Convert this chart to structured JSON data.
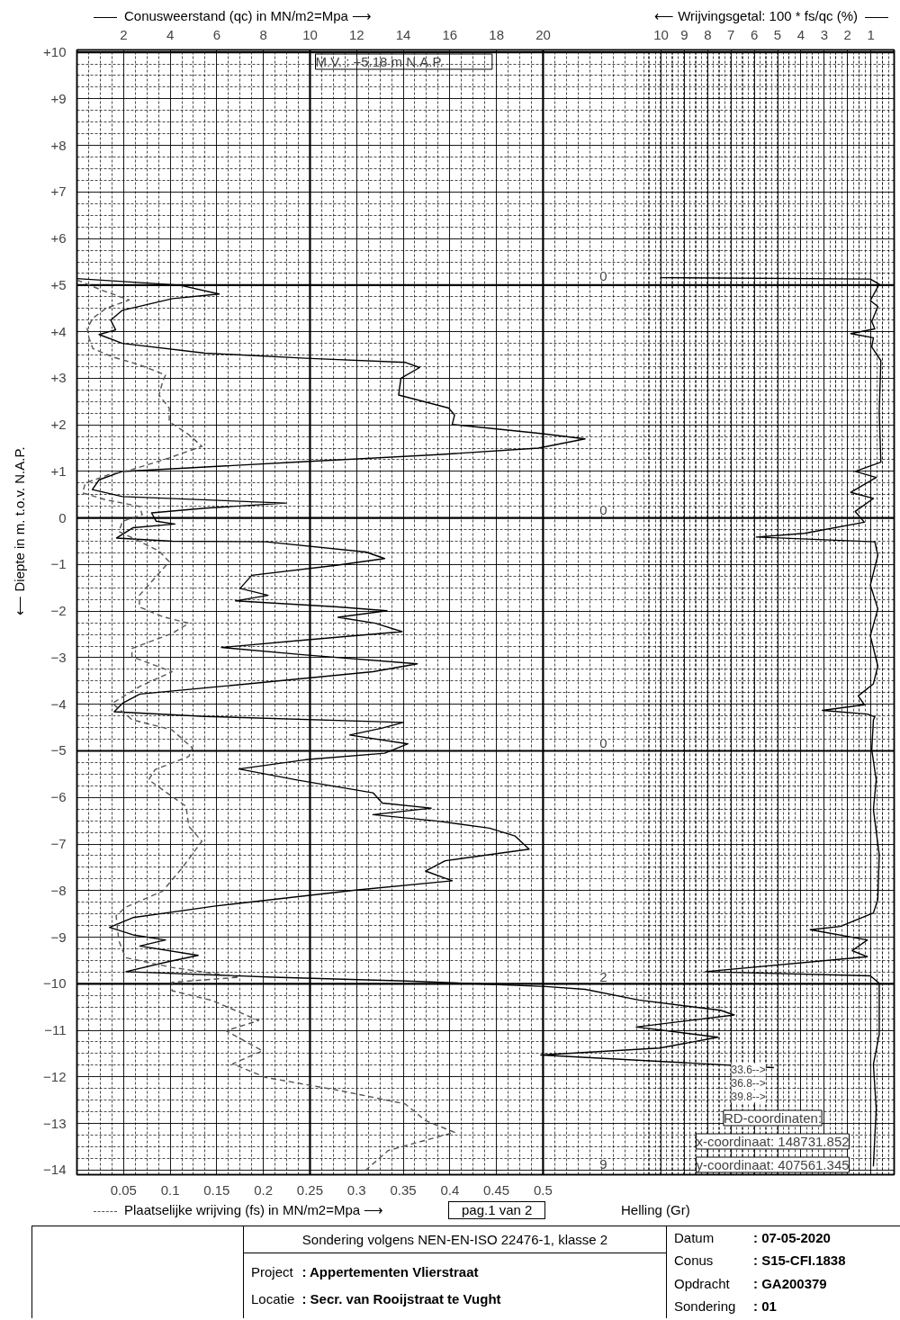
{
  "chart_data": [
    {
      "type": "line",
      "title": "Sondering volgens NEN-EN-ISO 22476-1, klasse 2",
      "xlabel": "Plaatselijke wrijving (fs) in MN/m2=Mpa ⟶",
      "x2label": "Conusweerstand (qc) in MN/m2=Mpa ⟶",
      "ylabel": "⟵ Diepte in m. t.o.v. N.A.P.",
      "xlim": [
        0,
        0.8766
      ],
      "xticks": [
        0.05,
        0.1,
        0.15,
        0.2,
        0.25,
        0.3,
        0.35,
        0.4,
        0.45,
        0.5
      ],
      "x2lim": [
        0,
        35.06
      ],
      "x2ticks": [
        2,
        4,
        6,
        8,
        10,
        12,
        14,
        16,
        18,
        20
      ],
      "ylim": [
        -14.1,
        10.05
      ],
      "yticks": [
        {
          "value": 10,
          "label": "+10"
        },
        {
          "value": 9,
          "label": "+9"
        },
        {
          "value": 8,
          "label": "+8"
        },
        {
          "value": 7,
          "label": "+7"
        },
        {
          "value": 6,
          "label": "+6"
        },
        {
          "value": 5,
          "label": "+5"
        },
        {
          "value": 4,
          "label": "+4"
        },
        {
          "value": 3,
          "label": "+3"
        },
        {
          "value": 2,
          "label": "+2"
        },
        {
          "value": 1,
          "label": "+1"
        },
        0,
        -1,
        -2,
        -3,
        -4,
        -5,
        -6,
        -7,
        -8,
        -9,
        -10,
        -11,
        -12,
        -13,
        -14
      ],
      "grid": true,
      "series": [
        {
          "axis": "x2",
          "color": "#000000",
          "line_style": "solid",
          "x": [
            0,
            4.4,
            6.1,
            4.1,
            1.95,
            1.45,
            1.66,
            0.95,
            1.95,
            5.5,
            9.8,
            14.1,
            14.7,
            13.9,
            13.8,
            15.95,
            16.2,
            16.1,
            19.8,
            21.8,
            19.8,
            15.5,
            9.8,
            1.95,
            0.95,
            0.66,
            1.95,
            8.95,
            5.5,
            3.2,
            3.4,
            4.2,
            2.4,
            1.7,
            4.1,
            8.1,
            12.4,
            13.2,
            11.2,
            7.5,
            7.0,
            8.2,
            6.8,
            11.2,
            13.3,
            11.2,
            12.8,
            13.95,
            9.8,
            6.2,
            9.8,
            14.6,
            12.7,
            6.95,
            2.7,
            1.95,
            1.6,
            5.5,
            14.0,
            13.1,
            11.7,
            14.2,
            13.2,
            9.8,
            6.95,
            9.5,
            12.7,
            13.1,
            15.2,
            12.7,
            15.5,
            17.7,
            18.8,
            19.4,
            15.8,
            14.95,
            16.1,
            11.95,
            5.95,
            2.4,
            1.4,
            2.4,
            3.8,
            2.7,
            5.2,
            3.8,
            2.1,
            8.4,
            14.1,
            20.1,
            21.8,
            24.1,
            27.6,
            28.2,
            24.0,
            27.5,
            25.0,
            19.9,
            29.9
          ],
          "values": [
            5.14,
            5.0,
            4.81,
            4.71,
            4.46,
            4.25,
            4.04,
            3.94,
            3.75,
            3.54,
            3.43,
            3.34,
            3.23,
            3.0,
            2.64,
            2.36,
            2.21,
            2.01,
            1.82,
            1.7,
            1.5,
            1.36,
            1.21,
            1.0,
            0.82,
            0.61,
            0.46,
            0.32,
            0.21,
            0.11,
            -0.07,
            -0.13,
            -0.21,
            -0.43,
            -0.5,
            -0.51,
            -0.73,
            -0.87,
            -1.01,
            -1.23,
            -1.51,
            -1.66,
            -1.78,
            -1.91,
            -1.99,
            -2.13,
            -2.26,
            -2.44,
            -2.62,
            -2.78,
            -2.94,
            -3.13,
            -3.3,
            -3.58,
            -3.78,
            -3.98,
            -4.16,
            -4.26,
            -4.39,
            -4.51,
            -4.66,
            -4.85,
            -5.05,
            -5.19,
            -5.39,
            -5.63,
            -5.9,
            -6.12,
            -6.23,
            -6.37,
            -6.51,
            -6.66,
            -6.83,
            -7.11,
            -7.36,
            -7.58,
            -7.79,
            -7.99,
            -8.33,
            -8.58,
            -8.79,
            -8.95,
            -9.06,
            -9.19,
            -9.39,
            -9.54,
            -9.74,
            -9.86,
            -9.94,
            -10.06,
            -10.12,
            -10.35,
            -10.57,
            -10.67,
            -10.93,
            -11.15,
            -11.38,
            -11.53,
            -11.8
          ]
        },
        {
          "color": "#555555",
          "line_style": "dashed",
          "x": [
            0,
            0.027,
            0.056,
            0.031,
            0.017,
            0.011,
            0.013,
            0.017,
            0.038,
            0.067,
            0.095,
            0.092,
            0.088,
            0.099,
            0.099,
            0.12,
            0.134,
            0.099,
            0.059,
            0.034,
            0.009,
            0.006,
            0.031,
            0.067,
            0.07,
            0.049,
            0.045,
            0.067,
            0.088,
            0.099,
            0.088,
            0.067,
            0.067,
            0.092,
            0.12,
            0.102,
            0.059,
            0.059,
            0.102,
            0.067,
            0.038,
            0.059,
            0.102,
            0.124,
            0.12,
            0.084,
            0.077,
            0.102,
            0.117,
            0.12,
            0.134,
            0.113,
            0.092,
            0.052,
            0.042,
            0.045,
            0.052,
            0.102,
            0.174,
            0.102,
            0.102,
            0.145,
            0.195,
            0.16,
            0.199,
            0.167,
            0.202,
            0.281,
            0.352,
            0.374,
            0.405,
            0.334,
            0.31
          ],
          "values": [
            5.11,
            4.89,
            4.68,
            4.5,
            4.29,
            4.07,
            3.86,
            3.64,
            3.46,
            3.29,
            3.07,
            2.93,
            2.64,
            2.36,
            2.07,
            1.79,
            1.54,
            1.29,
            1.04,
            0.93,
            0.75,
            0.54,
            0.39,
            0.25,
            0.07,
            -0.07,
            -0.29,
            -0.5,
            -0.71,
            -0.94,
            -1.19,
            -1.66,
            -1.91,
            -2.12,
            -2.26,
            -2.48,
            -2.8,
            -2.98,
            -3.3,
            -3.62,
            -3.98,
            -4.33,
            -4.55,
            -4.94,
            -5.12,
            -5.4,
            -5.62,
            -5.98,
            -6.19,
            -6.62,
            -6.94,
            -7.51,
            -8.01,
            -8.36,
            -8.54,
            -9.08,
            -9.44,
            -9.65,
            -9.86,
            -9.97,
            -10.15,
            -10.36,
            -10.79,
            -11.01,
            -11.44,
            -11.72,
            -12.01,
            -12.29,
            -12.58,
            -12.94,
            -13.19,
            -13.58,
            -14.0
          ]
        }
      ],
      "annotations": [
        "M.V. :            +5.18 m   N.A.P.",
        "33.6-->",
        "36.8-->",
        "39.8-->",
        "RD-coordinaten:",
        "x-coordinaat: 148731.852",
        "y-coordinaat: 407561.345",
        "pag.1 van 2",
        "Helling (Gr)",
        "0",
        "0",
        "0",
        "2",
        "9",
        "Project",
        ": Appertementen Vlierstraat",
        "Locatie",
        ": Secr. van Rooijstraat te Vught",
        "Datum",
        ": 07-05-2020",
        "Conus",
        ": S15-CFI.1838",
        "Opdracht",
        ": GA200379",
        "Sondering",
        ": 01"
      ]
    },
    {
      "type": "line",
      "xlabel": "⟵ Wrijvingsgetal: 100 * fs/qc (%)",
      "xlim": [
        35.06,
        0
      ],
      "xticks": [
        10,
        9,
        8,
        7,
        6,
        5,
        4,
        3,
        2,
        1
      ],
      "ylim": [
        -14.1,
        10.05
      ],
      "grid": "x",
      "tick_labels": "x",
      "series": [
        {
          "color": "#000000",
          "line_style": "solid",
          "x": [
            10.0,
            1.02,
            0.64,
            1.02,
            0.7,
            0.96,
            0.83,
            1.86,
            0.89,
            0.96,
            0.57,
            0.64,
            0.57,
            1.67,
            0.77,
            1.86,
            0.89,
            1.67,
            1.28,
            3.85,
            5.91,
            0.83,
            0.7,
            1.02,
            0.7,
            1.02,
            0.7,
            0.89,
            1.54,
            1.28,
            3.08,
            1.15,
            0.83,
            0.89,
            0.96,
            0.77,
            0.89,
            0.64,
            0.7,
            0.89,
            2.31,
            3.6,
            1.15,
            1.8,
            1.15,
            8.1,
            1.02,
            0.64,
            0.64,
            0.89,
            0.77,
            0.89
          ],
          "values": [
            5.16,
            5.13,
            5.02,
            4.67,
            4.54,
            4.22,
            4.06,
            3.96,
            3.87,
            3.67,
            3.38,
            2.29,
            1.2,
            1.0,
            0.87,
            0.55,
            0.42,
            0.14,
            -0.09,
            -0.33,
            -0.41,
            -0.51,
            -0.8,
            -1.44,
            -1.95,
            -2.53,
            -3.18,
            -3.56,
            -3.82,
            -4.01,
            -4.13,
            -4.21,
            -4.27,
            -4.34,
            -4.98,
            -5.62,
            -6.26,
            -7.23,
            -8.19,
            -8.48,
            -8.77,
            -8.84,
            -9.06,
            -9.29,
            -9.42,
            -9.74,
            -9.83,
            -9.99,
            -11.09,
            -11.73,
            -12.69,
            -13.92
          ]
        }
      ]
    }
  ]
}
